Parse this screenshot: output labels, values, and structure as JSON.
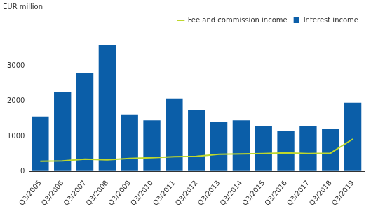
{
  "chart_data": {
    "type": "bar",
    "y_label": "EUR million",
    "categories": [
      "Q3/2005",
      "Q3/2006",
      "Q3/2007",
      "Q3/2008",
      "Q3/2009",
      "Q3/2010",
      "Q3/2011",
      "Q3/2012",
      "Q3/2013",
      "Q3/2014",
      "Q3/2015",
      "Q3/2016",
      "Q3/2017",
      "Q3/2018",
      "Q3/2019"
    ],
    "series": [
      {
        "name": "Interest income",
        "type": "bar",
        "color": "#0b5ea8",
        "values": [
          1560,
          2270,
          2800,
          3600,
          1620,
          1450,
          2080,
          1750,
          1410,
          1450,
          1280,
          1160,
          1280,
          1220,
          1960
        ]
      },
      {
        "name": "Fee and commission income",
        "type": "line",
        "color": "#bed72d",
        "values": [
          290,
          300,
          350,
          330,
          370,
          390,
          420,
          430,
          490,
          500,
          510,
          530,
          510,
          520,
          920
        ]
      }
    ],
    "ylim": [
      0,
      4000
    ],
    "yticks": [
      0,
      1000,
      2000,
      3000
    ],
    "grid": true,
    "legend": "top-right"
  }
}
